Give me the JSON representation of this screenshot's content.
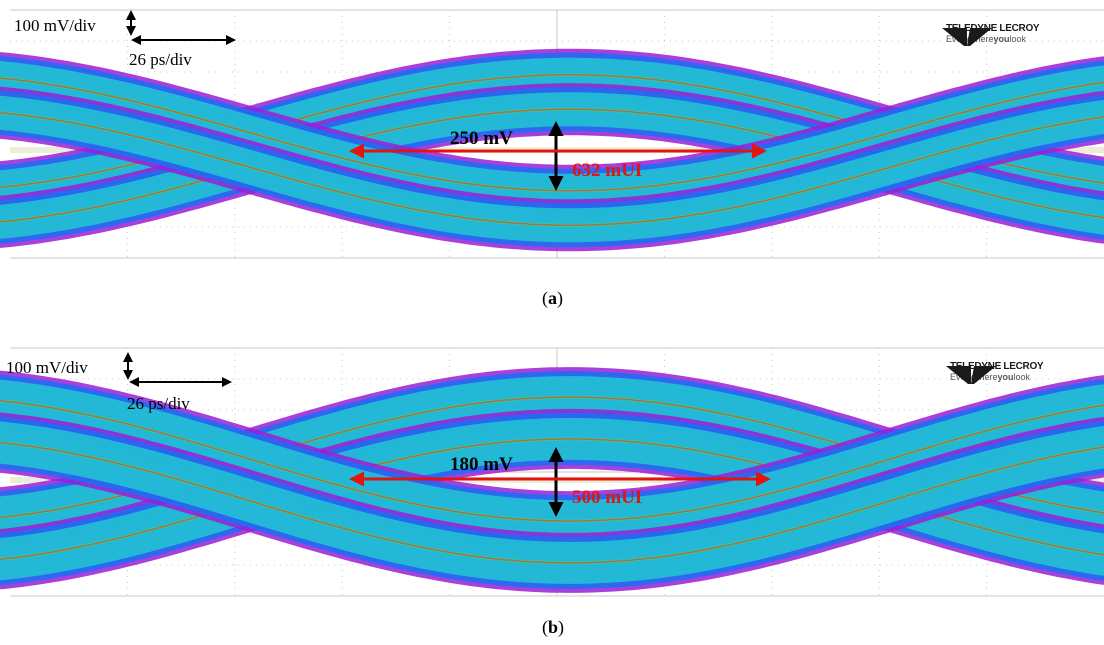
{
  "colors": {
    "grid": "#c8c8c8",
    "arrow_black": "#000000",
    "arrow_red": "#e3150f",
    "trace_outer": "#9b1fd6",
    "trace_mid": "#1e6df2",
    "trace_cyan": "#22d3cf",
    "trace_green": "#47d36a",
    "trace_hot": "#e8362b",
    "baseline": "#e8ead0"
  },
  "panels": [
    {
      "id": "a",
      "caption_open": "(",
      "caption_letter": "a",
      "caption_close": ")",
      "volts_per_div": "100 mV/div",
      "time_per_div": "26 ps/div",
      "eye_height": "250 mV",
      "eye_width": "632 mUI",
      "logo_name": "TELEDYNE LECROY",
      "logo_tag_plain": "Everywhere",
      "logo_tag_bold": "you",
      "logo_tag_end": "look"
    },
    {
      "id": "b",
      "caption_open": "(",
      "caption_letter": "b",
      "caption_close": ")",
      "volts_per_div": "100 mV/div",
      "time_per_div": "26 ps/div",
      "eye_height": "180 mV",
      "eye_width": "500 mUI",
      "logo_name": "TELEDYNE LECROY",
      "logo_tag_plain": "Everywhere",
      "logo_tag_bold": "you",
      "logo_tag_end": "look"
    }
  ]
}
